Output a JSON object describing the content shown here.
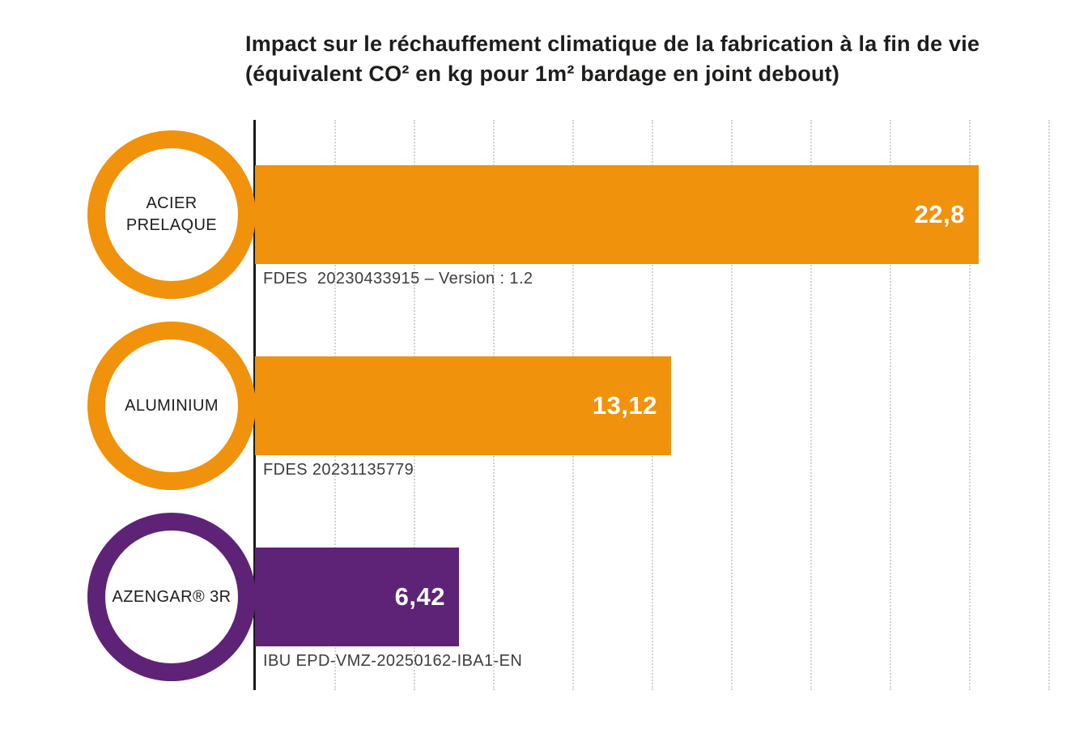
{
  "title": {
    "lines": [
      "Impact sur le réchauffement climatique de la fabrication à la fin de vie",
      "(équivalent CO² en kg pour 1m² bardage en joint debout)"
    ]
  },
  "chart_data": {
    "type": "bar",
    "orientation": "horizontal",
    "title": "Impact sur le réchauffement climatique de la fabrication à la fin de vie (équivalent CO² en kg pour 1m² bardage en joint debout)",
    "categories": [
      "ACIER PRELAQUE",
      "ALUMINIUM",
      "AZENGAR® 3R"
    ],
    "values": [
      22.8,
      13.12,
      6.42
    ],
    "value_labels": [
      "22,8",
      "13,12",
      "6,42"
    ],
    "sub_labels": [
      "FDES  20230433915 – Version : 1.2",
      "FDES 20231135779",
      "IBU EPD-VMZ-20250162-IBA1-EN"
    ],
    "bar_colors": [
      "#F0920B",
      "#F0920B",
      "#5E2377"
    ],
    "ring_colors": [
      "#F0920B",
      "#F0920B",
      "#5E2377"
    ],
    "xlim": [
      0,
      25
    ],
    "gridline_interval": 2.5,
    "gridlines": [
      2.5,
      5,
      7.5,
      10,
      12.5,
      15,
      17.5,
      20,
      22.5,
      25
    ],
    "grid": true,
    "legend": "none"
  },
  "colors": {
    "background": "#FFFFFF",
    "title_text": "#1D1D1B",
    "sub_label_text": "#3D3D3B",
    "value_text": "#FFFFFF",
    "axis": "#1A1A1A",
    "gridline": "#D2D2D2",
    "orange": "#F0920B",
    "purple": "#5E2377"
  }
}
